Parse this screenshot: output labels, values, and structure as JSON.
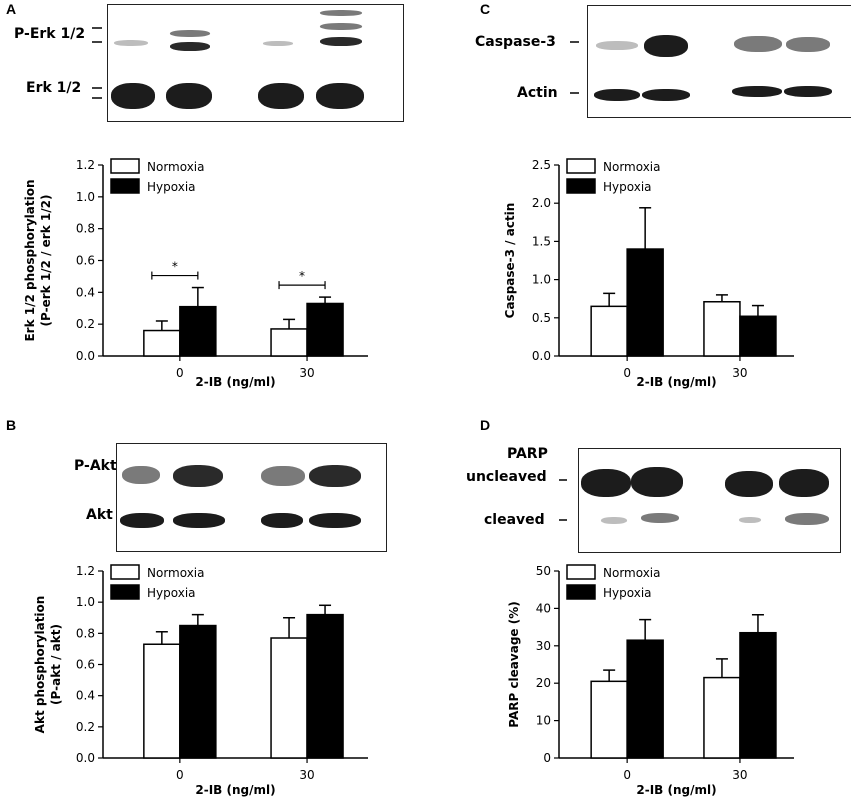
{
  "panels": {
    "A": {
      "letter": "A",
      "blot_labels": [
        "P-Erk 1/2",
        "Erk 1/2"
      ]
    },
    "B": {
      "letter": "B",
      "blot_labels": [
        "P-Akt",
        "Akt"
      ]
    },
    "C": {
      "letter": "C",
      "blot_labels": [
        "Caspase-3",
        "Actin"
      ]
    },
    "D": {
      "letter": "D",
      "blot_labels": [
        "PARP",
        "uncleaved",
        "cleaved"
      ]
    }
  },
  "chart_data": [
    {
      "id": "A",
      "type": "bar",
      "categories": [
        "0",
        "30"
      ],
      "series": [
        {
          "name": "Normoxia",
          "values": [
            0.16,
            0.17
          ],
          "errors": [
            0.06,
            0.06
          ],
          "color": "#ffffff"
        },
        {
          "name": "Hypoxia",
          "values": [
            0.31,
            0.33
          ],
          "errors": [
            0.12,
            0.04
          ],
          "color": "#000000"
        }
      ],
      "xlabel": "2-IB (ng/ml)",
      "ylabel": [
        "Erk 1/2 phosphorylation",
        "(P-erk 1/2 / erk 1/2)"
      ],
      "ylim": [
        0,
        1.2
      ],
      "yticks": [
        "0.0",
        "0.2",
        "0.4",
        "0.6",
        "0.8",
        "1.0",
        "1.2"
      ],
      "significance": [
        {
          "category": "0",
          "label": "*"
        },
        {
          "category": "30",
          "label": "*"
        }
      ],
      "legend": "top-left"
    },
    {
      "id": "B",
      "type": "bar",
      "categories": [
        "0",
        "30"
      ],
      "series": [
        {
          "name": "Normoxia",
          "values": [
            0.73,
            0.77
          ],
          "errors": [
            0.08,
            0.13
          ],
          "color": "#ffffff"
        },
        {
          "name": "Hypoxia",
          "values": [
            0.85,
            0.92
          ],
          "errors": [
            0.07,
            0.06
          ],
          "color": "#000000"
        }
      ],
      "xlabel": "2-IB (ng/ml)",
      "ylabel": [
        "Akt phosphorylation",
        "(P-akt / akt)"
      ],
      "ylim": [
        0,
        1.2
      ],
      "yticks": [
        "0.0",
        "0.2",
        "0.4",
        "0.6",
        "0.8",
        "1.0",
        "1.2"
      ],
      "significance": [],
      "legend": "top-left"
    },
    {
      "id": "C",
      "type": "bar",
      "categories": [
        "0",
        "30"
      ],
      "series": [
        {
          "name": "Normoxia",
          "values": [
            0.65,
            0.71
          ],
          "errors": [
            0.17,
            0.09
          ],
          "color": "#ffffff"
        },
        {
          "name": "Hypoxia",
          "values": [
            1.4,
            0.52
          ],
          "errors": [
            0.54,
            0.14
          ],
          "color": "#000000"
        }
      ],
      "xlabel": "2-IB (ng/ml)",
      "ylabel": [
        "Caspase-3 / actin"
      ],
      "ylim": [
        0,
        2.5
      ],
      "yticks": [
        "0.0",
        "0.5",
        "1.0",
        "1.5",
        "2.0",
        "2.5"
      ],
      "significance": [],
      "legend": "top-left"
    },
    {
      "id": "D",
      "type": "bar",
      "categories": [
        "0",
        "30"
      ],
      "series": [
        {
          "name": "Normoxia",
          "values": [
            20.5,
            21.5
          ],
          "errors": [
            3,
            5
          ],
          "color": "#ffffff"
        },
        {
          "name": "Hypoxia",
          "values": [
            31.5,
            33.5
          ],
          "errors": [
            5.5,
            4.8
          ],
          "color": "#000000"
        }
      ],
      "xlabel": "2-IB (ng/ml)",
      "ylabel": [
        "PARP cleavage (%)"
      ],
      "ylim": [
        0,
        50
      ],
      "yticks": [
        "0",
        "10",
        "20",
        "30",
        "40",
        "50"
      ],
      "significance": [],
      "legend": "top-left"
    }
  ]
}
